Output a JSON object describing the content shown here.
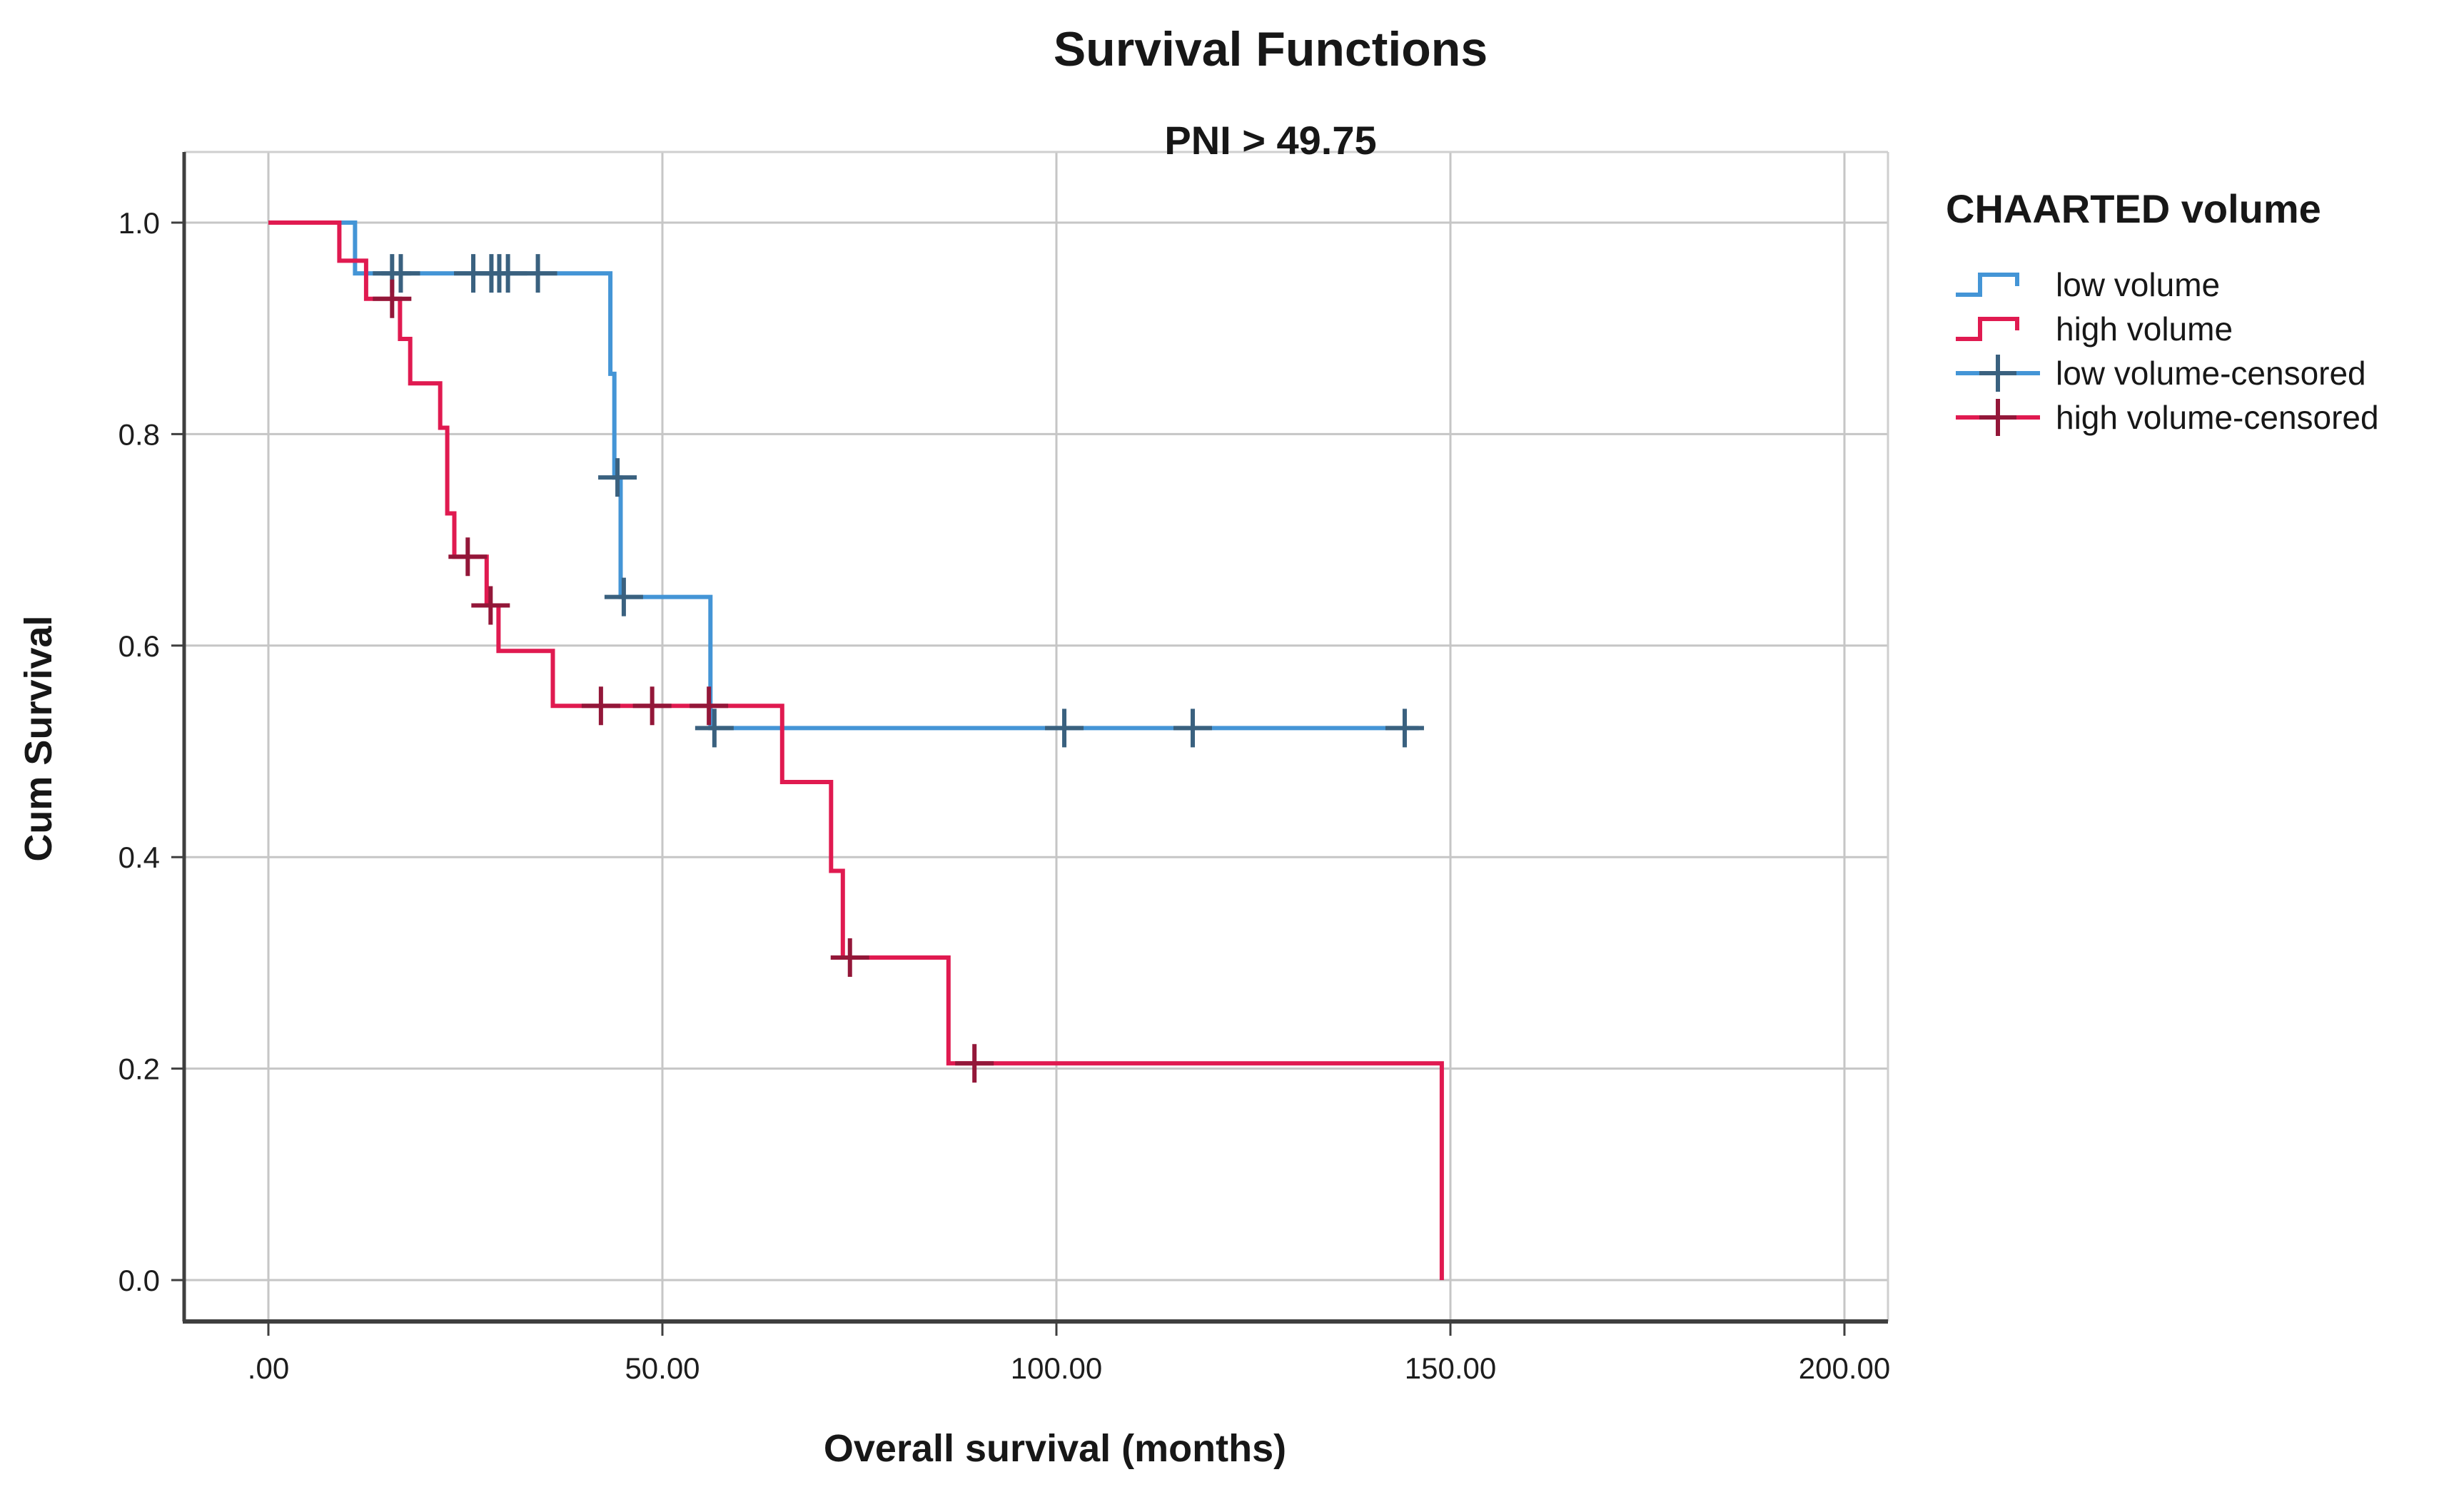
{
  "title": "Survival Functions",
  "subtitle": "PNI > 49.75",
  "x_axis": {
    "title": "Overall survival (months)",
    "tick_labels": [
      ".00",
      "50.00",
      "100.00",
      "150.00",
      "200.00"
    ],
    "tick_values": [
      0,
      50,
      100,
      150,
      200
    ]
  },
  "y_axis": {
    "title": "Cum Survival",
    "tick_labels": [
      "0.0",
      "0.2",
      "0.4",
      "0.6",
      "0.8",
      "1.0"
    ],
    "tick_values": [
      0,
      0.2,
      0.4,
      0.6,
      0.8,
      1.0
    ]
  },
  "legend": {
    "title": "CHAARTED volume",
    "entries": [
      {
        "label": "low volume",
        "type": "line",
        "color": "#4495d6"
      },
      {
        "label": "high volume",
        "type": "line",
        "color": "#e01a50"
      },
      {
        "label": "low volume-censored",
        "type": "plus",
        "color": "#4495d6",
        "mark_color": "#3a617f"
      },
      {
        "label": "high volume-censored",
        "type": "plus",
        "color": "#e01a50",
        "mark_color": "#931739"
      }
    ]
  },
  "chart_data": {
    "type": "line",
    "kind": "kaplan-meier-step",
    "title": "Survival Functions",
    "xlabel": "Overall survival (months)",
    "ylabel": "Cum Survival",
    "xlim": [
      -11,
      206
    ],
    "ylim": [
      -0.039,
      1.065
    ],
    "grid": true,
    "grid_color": "#c6c6c6",
    "legend_position": "right",
    "series": [
      {
        "name": "low volume",
        "color": "#4495d6",
        "censor_color": "#3a617f",
        "steps": [
          [
            0,
            1.0
          ],
          [
            11,
            1.0
          ],
          [
            11,
            0.952
          ],
          [
            43.4,
            0.952
          ],
          [
            43.4,
            0.857
          ],
          [
            43.9,
            0.857
          ],
          [
            43.9,
            0.759
          ],
          [
            44.7,
            0.759
          ],
          [
            44.7,
            0.646
          ],
          [
            56.1,
            0.646
          ],
          [
            56.1,
            0.522
          ],
          [
            146,
            0.522
          ]
        ],
        "censored": [
          [
            15.7,
            0.952
          ],
          [
            16.8,
            0.952
          ],
          [
            26,
            0.952
          ],
          [
            28.3,
            0.952
          ],
          [
            29.3,
            0.952
          ],
          [
            30.4,
            0.952
          ],
          [
            34.2,
            0.952
          ],
          [
            44.3,
            0.759
          ],
          [
            45.1,
            0.646
          ],
          [
            56.6,
            0.522
          ],
          [
            101,
            0.522
          ],
          [
            117.3,
            0.522
          ],
          [
            144.2,
            0.522
          ]
        ]
      },
      {
        "name": "high volume",
        "color": "#e01a50",
        "censor_color": "#931739",
        "steps": [
          [
            0,
            1.0
          ],
          [
            9,
            1.0
          ],
          [
            9,
            0.964
          ],
          [
            12.4,
            0.964
          ],
          [
            12.4,
            0.928
          ],
          [
            16.7,
            0.928
          ],
          [
            16.7,
            0.89
          ],
          [
            18,
            0.89
          ],
          [
            18,
            0.848
          ],
          [
            21.8,
            0.848
          ],
          [
            21.8,
            0.806
          ],
          [
            22.7,
            0.806
          ],
          [
            22.7,
            0.725
          ],
          [
            23.6,
            0.725
          ],
          [
            23.6,
            0.684
          ],
          [
            27.7,
            0.684
          ],
          [
            27.7,
            0.638
          ],
          [
            29.2,
            0.638
          ],
          [
            29.2,
            0.595
          ],
          [
            36.1,
            0.595
          ],
          [
            36.1,
            0.543
          ],
          [
            65.2,
            0.543
          ],
          [
            65.2,
            0.471
          ],
          [
            71.4,
            0.471
          ],
          [
            71.4,
            0.387
          ],
          [
            72.9,
            0.387
          ],
          [
            72.9,
            0.305
          ],
          [
            86.3,
            0.305
          ],
          [
            86.3,
            0.205
          ],
          [
            148.9,
            0.205
          ],
          [
            148.9,
            0.0
          ]
        ],
        "censored": [
          [
            15.7,
            0.928
          ],
          [
            25.3,
            0.684
          ],
          [
            28.2,
            0.638
          ],
          [
            42.2,
            0.543
          ],
          [
            48.7,
            0.543
          ],
          [
            55.9,
            0.543
          ],
          [
            73.8,
            0.305
          ],
          [
            89.6,
            0.205
          ]
        ]
      }
    ]
  }
}
